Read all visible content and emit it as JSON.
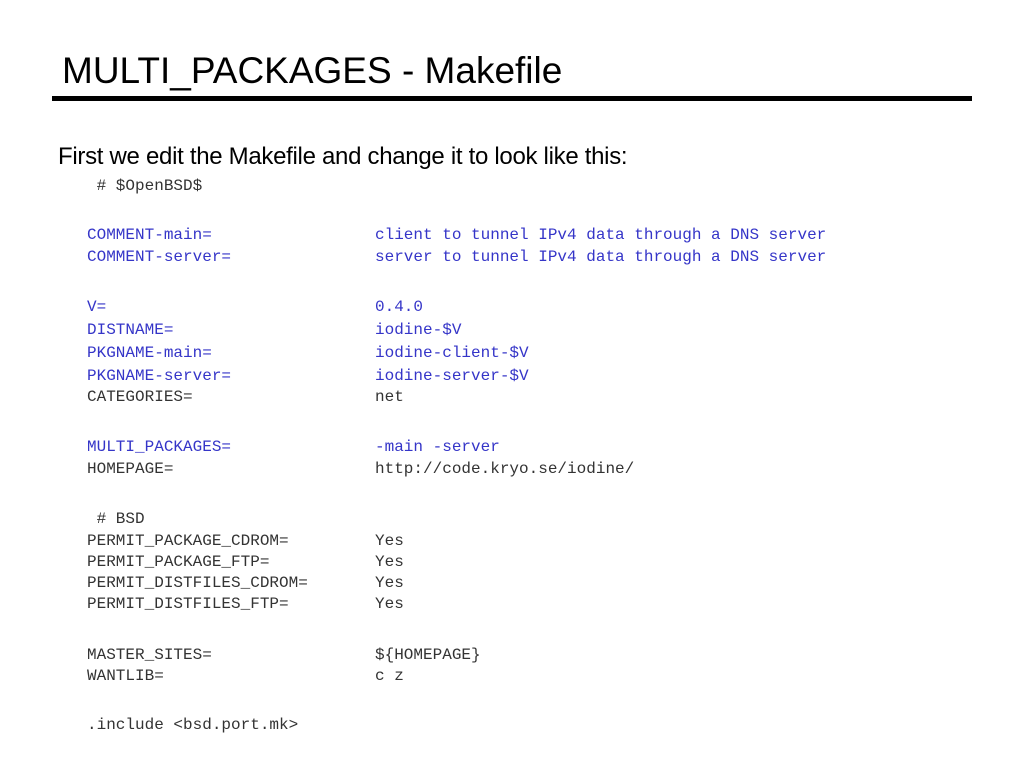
{
  "title": "MULTI_PACKAGES - Makefile",
  "intro": "First we edit the Makefile and change it to look like this:",
  "code": {
    "header_comment": " # $OpenBSD$",
    "rows": [
      {
        "key": "COMMENT-main=",
        "value": "client to tunnel IPv4 data through a DNS server"
      },
      {
        "key": "COMMENT-server=",
        "value": "server to tunnel IPv4 data through a DNS server"
      },
      {
        "key": "V=",
        "value": "0.4.0"
      },
      {
        "key": "DISTNAME=",
        "value": "iodine-$V"
      },
      {
        "key": "PKGNAME-main=",
        "value": "iodine-client-$V"
      },
      {
        "key": "PKGNAME-server=",
        "value": "iodine-server-$V"
      },
      {
        "key": "CATEGORIES=",
        "value": "net"
      },
      {
        "key": "MULTI_PACKAGES=",
        "value": "-main -server"
      },
      {
        "key": "HOMEPAGE=",
        "value": "http://code.kryo.se/iodine/"
      },
      {
        "key": "PERMIT_PACKAGE_CDROM=",
        "value": "Yes"
      },
      {
        "key": "PERMIT_PACKAGE_FTP=",
        "value": "Yes"
      },
      {
        "key": "PERMIT_DISTFILES_CDROM=",
        "value": "Yes"
      },
      {
        "key": "PERMIT_DISTFILES_FTP=",
        "value": "Yes"
      },
      {
        "key": "MASTER_SITES=",
        "value": "${HOMEPAGE}"
      },
      {
        "key": "WANTLIB=",
        "value": "c z"
      }
    ],
    "bsd_comment": " # BSD",
    "include": ".include <bsd.port.mk>"
  },
  "colors": {
    "highlight": "#3535c8",
    "text": "#333333"
  }
}
